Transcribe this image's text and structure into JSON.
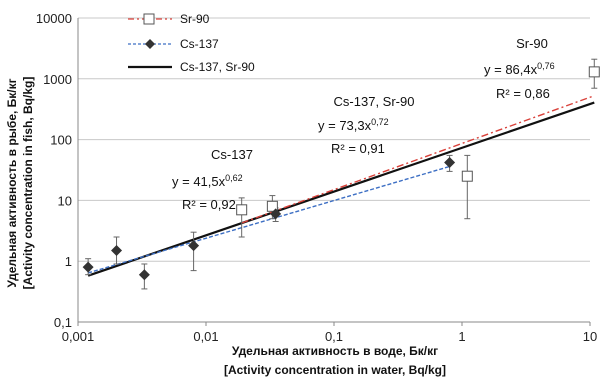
{
  "chart_data": {
    "type": "scatter",
    "x_scale": "log",
    "y_scale": "log",
    "xlim": [
      0.001,
      10
    ],
    "ylim": [
      0.1,
      10000
    ],
    "x_ticks": [
      "0,001",
      "0,01",
      "0,1",
      "1",
      "10"
    ],
    "y_ticks": [
      "0,1",
      "1",
      "10",
      "100",
      "1000",
      "10000"
    ],
    "xlabel": [
      "Удельная активность в воде, Бк/кг",
      "[Activity concentration  in water, Bq/kg]"
    ],
    "ylabel": [
      "Удельная активность  в рыбе, Бк/кг",
      "[Activity concentration in fish, Bq/kg]"
    ],
    "grid": "horizontal",
    "legend_position": "top-left",
    "series": [
      {
        "name": "Sr-90",
        "marker": "open-square",
        "color": "#d9413a",
        "line_style": "dash-dot",
        "points": [
          {
            "x": 0.019,
            "y": 7,
            "y_err": [
              2.5,
              11
            ]
          },
          {
            "x": 0.033,
            "y": 8,
            "y_err": [
              5,
              12
            ]
          },
          {
            "x": 1.1,
            "y": 25,
            "y_err": [
              5,
              55
            ]
          },
          {
            "x": 10.8,
            "y": 1300,
            "y_err": [
              700,
              2100
            ]
          }
        ],
        "fit": {
          "a": 86.4,
          "b": 0.76,
          "x_range": [
            0.019,
            10.8
          ]
        }
      },
      {
        "name": "Cs-137",
        "marker": "filled-diamond",
        "color": "#3d6fc4",
        "line_style": "dashed",
        "points": [
          {
            "x": 0.0012,
            "y": 0.8,
            "y_err": [
              0.6,
              1.1
            ]
          },
          {
            "x": 0.002,
            "y": 1.5,
            "y_err": [
              0.9,
              2.5
            ]
          },
          {
            "x": 0.0033,
            "y": 0.6,
            "y_err": [
              0.35,
              0.9
            ]
          },
          {
            "x": 0.008,
            "y": 1.8,
            "y_err": [
              0.7,
              3
            ]
          },
          {
            "x": 0.035,
            "y": 6,
            "y_err": [
              4.5,
              7.5
            ]
          },
          {
            "x": 0.8,
            "y": 42,
            "y_err": [
              30,
              55
            ]
          }
        ],
        "fit": {
          "a": 41.5,
          "b": 0.62,
          "x_range": [
            0.0012,
            0.8
          ]
        }
      },
      {
        "name": "Cs-137,  Sr-90",
        "color": "#111111",
        "line_style": "solid",
        "fit": {
          "a": 73.3,
          "b": 0.72,
          "x_range": [
            0.0012,
            10.8
          ]
        }
      }
    ],
    "annotations": [
      {
        "label": "Cs-137",
        "equation": "y = 41,5x",
        "exponent": "0,62",
        "r2": "R² = 0,92"
      },
      {
        "label": "Cs-137,  Sr-90",
        "equation": "y = 73,3x",
        "exponent": "0,72",
        "r2": "R² = 0,91"
      },
      {
        "label": "Sr-90",
        "equation": "y = 86,4x",
        "exponent": "0,76",
        "r2": "R² = 0,86"
      }
    ]
  }
}
